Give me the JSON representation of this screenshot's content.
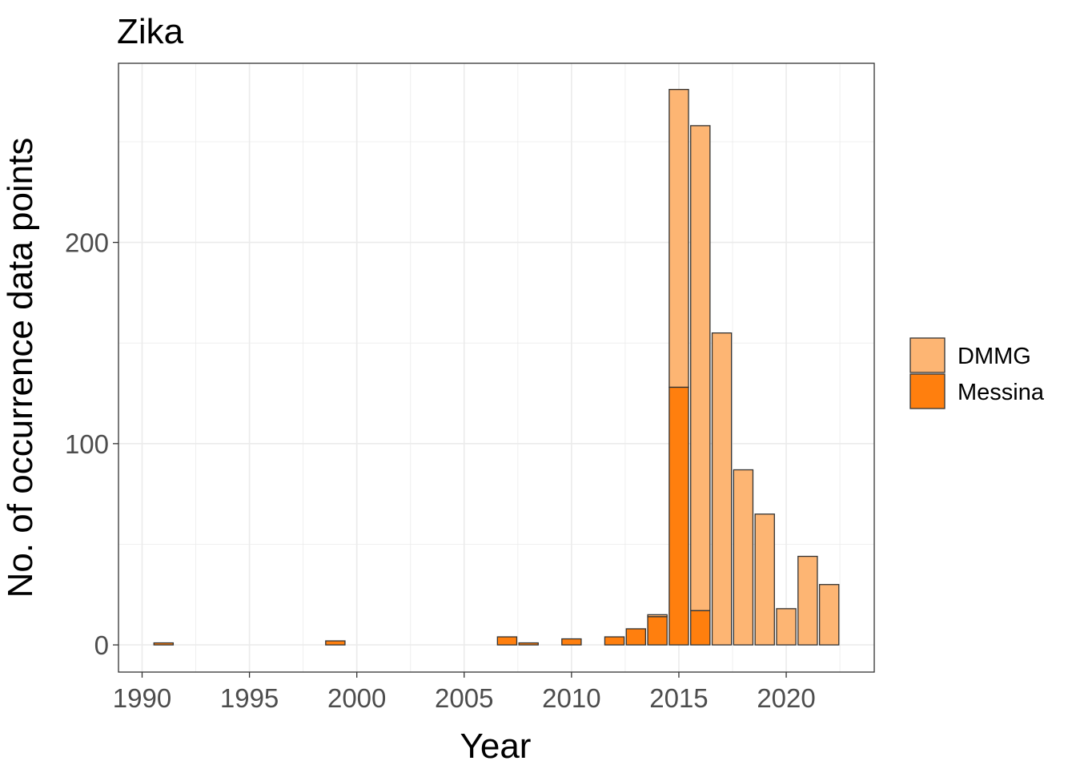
{
  "chart_data": {
    "type": "bar",
    "stacked": true,
    "title": "Zika",
    "xlabel": "Year",
    "ylabel": "No. of occurrence data points",
    "xlim": [
      1988.9,
      2024.1
    ],
    "ylim": [
      -13.5,
      289
    ],
    "xticks": [
      1990,
      1995,
      2000,
      2005,
      2010,
      2015,
      2020
    ],
    "yticks": [
      0,
      100,
      200
    ],
    "grid": true,
    "legend_position": "right",
    "x": [
      1991,
      1999,
      2007,
      2008,
      2010,
      2012,
      2013,
      2014,
      2015,
      2016,
      2017,
      2018,
      2019,
      2020,
      2021,
      2022
    ],
    "series": [
      {
        "name": "Messina",
        "color": "#FF7F0E",
        "values": [
          1,
          2,
          4,
          1,
          3,
          4,
          8,
          14,
          128,
          17,
          0,
          0,
          0,
          0,
          0,
          0
        ]
      },
      {
        "name": "DMMG",
        "color": "#FDB573",
        "values": [
          0,
          0,
          0,
          0,
          0,
          0,
          0,
          1,
          148,
          241,
          155,
          87,
          65,
          18,
          44,
          30
        ]
      }
    ]
  }
}
